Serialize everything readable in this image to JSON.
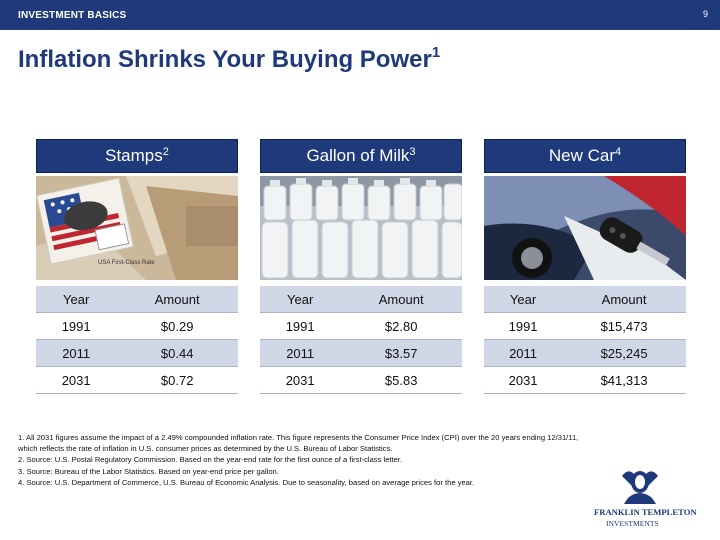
{
  "header": {
    "section": "INVESTMENT BASICS",
    "page_number": "9"
  },
  "title": {
    "text": "Inflation Shrinks Your Buying Power",
    "sup": "1"
  },
  "panels": [
    {
      "name": "Stamps",
      "sup": "2",
      "col_year": "Year",
      "col_amount": "Amount",
      "rows": [
        {
          "year": "1991",
          "amount": "$0.29"
        },
        {
          "year": "2011",
          "amount": "$0.44"
        },
        {
          "year": "2031",
          "amount": "$0.72"
        }
      ],
      "stamp_text": "USA First-Class Rate"
    },
    {
      "name": "Gallon of Milk",
      "sup": "3",
      "col_year": "Year",
      "col_amount": "Amount",
      "rows": [
        {
          "year": "1991",
          "amount": "$2.80"
        },
        {
          "year": "2011",
          "amount": "$3.57"
        },
        {
          "year": "2031",
          "amount": "$5.83"
        }
      ]
    },
    {
      "name": "New Car",
      "sup": "4",
      "col_year": "Year",
      "col_amount": "Amount",
      "rows": [
        {
          "year": "1991",
          "amount": "$15,473"
        },
        {
          "year": "2011",
          "amount": "$25,245"
        },
        {
          "year": "2031",
          "amount": "$41,313"
        }
      ]
    }
  ],
  "footnotes": [
    "1. All 2031 figures assume the impact of a 2.49% compounded inflation rate. This figure represents the Consumer Price Index (CPI) over the 20 years ending 12/31/11, which reflects the rate of inflation in U.S. consumer prices as determined by the U.S. Bureau of Labor Statistics.",
    "2. Source: U.S. Postal Regulatory Commission. Based on the year-end rate for the first ounce of a first-class letter.",
    "3. Source: Bureau of the Labor Statistics. Based on year-end price per gallon.",
    "4. Source: U.S. Department of Commerce, U.S. Bureau of Economic Analysis. Due to seasonality, based on average prices for the year."
  ],
  "logo": {
    "line1": "FRANKLIN TEMPLETON",
    "line2": "INVESTMENTS"
  },
  "colors": {
    "brand_blue": "#1f3a7a",
    "table_header": "#cfd6e6"
  }
}
